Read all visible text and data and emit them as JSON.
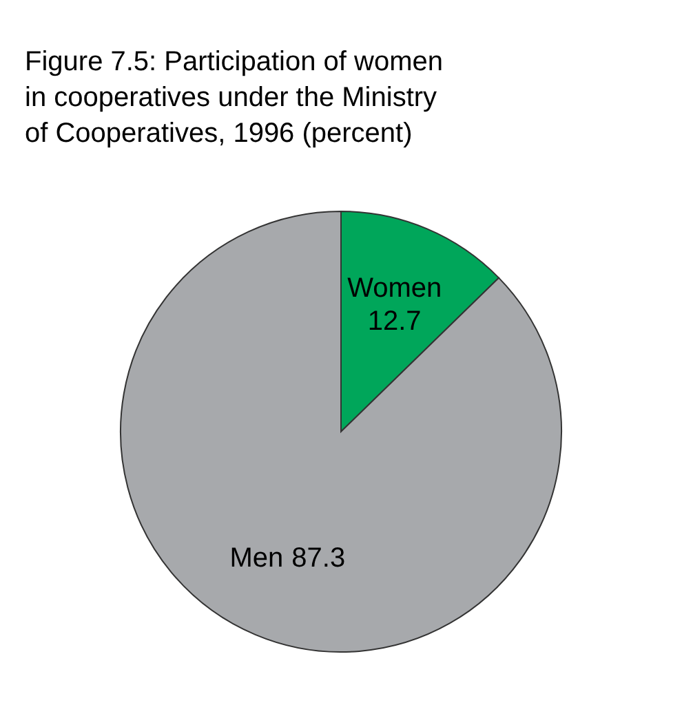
{
  "chart_data": {
    "type": "pie",
    "title": "Figure 7.5: Participation of women in cooperatives under the Ministry of Cooperatives, 1996 (percent)",
    "categories": [
      "Women",
      "Men"
    ],
    "values": [
      12.7,
      87.3
    ],
    "colors": [
      "#00a65a",
      "#a7a9ac"
    ],
    "data_labels": true,
    "legend": false
  }
}
